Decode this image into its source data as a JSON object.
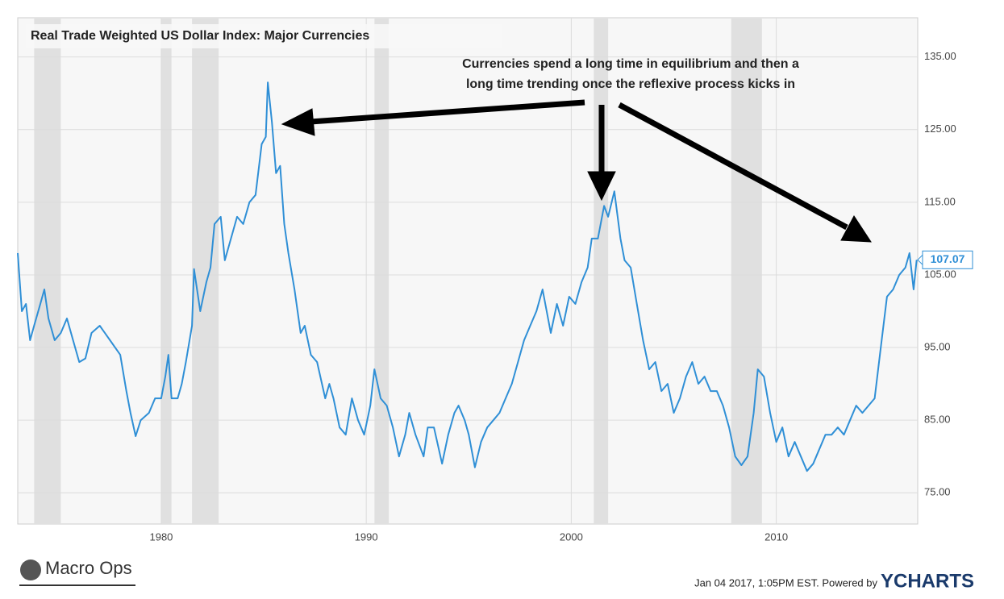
{
  "chart_data": {
    "type": "line",
    "title": "Real Trade Weighted US Dollar Index: Major Currencies",
    "annotation": [
      "Currencies spend a long time in equilibrium and then a",
      "long time trending once the reflexive process kicks in"
    ],
    "current_value_label": "107.07",
    "footer": "Jan 04 2017, 1:05PM EST. Powered by",
    "brand": "YCHARTS",
    "logo_text": "Macro Ops",
    "xlim": [
      1973.0,
      2016.9
    ],
    "xticks": [
      1980,
      1990,
      2000,
      2010
    ],
    "ylim": [
      70.7,
      140.4
    ],
    "yticks": [
      {
        "value": 75,
        "label": "75.00"
      },
      {
        "value": 85,
        "label": "85.00"
      },
      {
        "value": 95,
        "label": "95.00"
      },
      {
        "value": 105,
        "label": "105.00"
      },
      {
        "value": 115,
        "label": "115.00"
      },
      {
        "value": 125,
        "label": "125.00"
      },
      {
        "value": 135,
        "label": "135.00"
      }
    ],
    "grid": true,
    "shaded_periods": [
      [
        1973.8,
        1975.1
      ],
      [
        1980.0,
        1980.5
      ],
      [
        1981.5,
        1982.8
      ],
      [
        1990.4,
        1991.1
      ],
      [
        2001.1,
        2001.8
      ],
      [
        2007.8,
        2009.3
      ]
    ],
    "x": [
      1973.0,
      1973.2,
      1973.4,
      1973.6,
      1973.8,
      1974.1,
      1974.3,
      1974.5,
      1974.8,
      1975.1,
      1975.4,
      1975.7,
      1976.0,
      1976.3,
      1976.6,
      1977.0,
      1977.5,
      1978.0,
      1978.3,
      1978.5,
      1978.75,
      1979.0,
      1979.4,
      1979.7,
      1980.0,
      1980.2,
      1980.35,
      1980.5,
      1980.8,
      1981.0,
      1981.2,
      1981.5,
      1981.6,
      1981.9,
      1982.2,
      1982.4,
      1982.6,
      1982.9,
      1983.1,
      1983.4,
      1983.7,
      1984.0,
      1984.3,
      1984.6,
      1984.9,
      1985.1,
      1985.2,
      1985.4,
      1985.6,
      1985.8,
      1986.0,
      1986.2,
      1986.5,
      1986.8,
      1987.0,
      1987.3,
      1987.6,
      1988.0,
      1988.2,
      1988.4,
      1988.7,
      1989.0,
      1989.3,
      1989.6,
      1989.9,
      1990.2,
      1990.4,
      1990.7,
      1991.0,
      1991.3,
      1991.6,
      1991.9,
      1992.1,
      1992.4,
      1992.8,
      1993.0,
      1993.3,
      1993.7,
      1994.0,
      1994.3,
      1994.5,
      1994.8,
      1995.0,
      1995.3,
      1995.6,
      1995.9,
      1996.2,
      1996.5,
      1996.8,
      1997.1,
      1997.4,
      1997.7,
      1998.0,
      1998.3,
      1998.6,
      1998.8,
      1999.0,
      1999.3,
      1999.6,
      1999.9,
      2000.2,
      2000.5,
      2000.8,
      2001.0,
      2001.3,
      2001.6,
      2001.8,
      2002.1,
      2002.4,
      2002.6,
      2002.9,
      2003.2,
      2003.5,
      2003.8,
      2004.1,
      2004.4,
      2004.7,
      2005.0,
      2005.3,
      2005.6,
      2005.9,
      2006.2,
      2006.5,
      2006.8,
      2007.1,
      2007.4,
      2007.7,
      2008.0,
      2008.3,
      2008.6,
      2008.9,
      2009.1,
      2009.4,
      2009.7,
      2010.0,
      2010.3,
      2010.6,
      2010.9,
      2011.2,
      2011.5,
      2011.8,
      2012.1,
      2012.4,
      2012.7,
      2013.0,
      2013.3,
      2013.6,
      2013.9,
      2014.2,
      2014.5,
      2014.8,
      2015.1,
      2015.4,
      2015.7,
      2016.0,
      2016.3,
      2016.5,
      2016.7,
      2016.85
    ],
    "series": [
      {
        "color": "#2f8fd6",
        "values": [
          108,
          100,
          101,
          96,
          98,
          101,
          103,
          99,
          96,
          97,
          99,
          96,
          93,
          93.5,
          97,
          98,
          96,
          94,
          89,
          86,
          82.8,
          85,
          86,
          88,
          88,
          91,
          94,
          88,
          88,
          90,
          93,
          98,
          105.8,
          100,
          104,
          106,
          112,
          113,
          107,
          110,
          113,
          112,
          115,
          116,
          123,
          124,
          131.5,
          126,
          119,
          120,
          112,
          108,
          103,
          97,
          98,
          94,
          93,
          88,
          90,
          88,
          84,
          83,
          88,
          85,
          83,
          87,
          92,
          88,
          87,
          84,
          80,
          83,
          86,
          83,
          80,
          84,
          84,
          79,
          83,
          86,
          87,
          85,
          83,
          78.5,
          82,
          84,
          85,
          86,
          88,
          90,
          93,
          96,
          98,
          100,
          103,
          100,
          97,
          101,
          98,
          102,
          101,
          104,
          106,
          110,
          110,
          114.5,
          113,
          116.5,
          110,
          107,
          106,
          101,
          96,
          92,
          93,
          89,
          90,
          86,
          88,
          91,
          93,
          90,
          91,
          89,
          89,
          87,
          84,
          80,
          78.8,
          80,
          86,
          92,
          91,
          86,
          82,
          84,
          80,
          82,
          80,
          78,
          79,
          81,
          83,
          83,
          84,
          83,
          85,
          87,
          86,
          87,
          88,
          95,
          102,
          103,
          105,
          106,
          108,
          103,
          107.07
        ]
      }
    ]
  }
}
